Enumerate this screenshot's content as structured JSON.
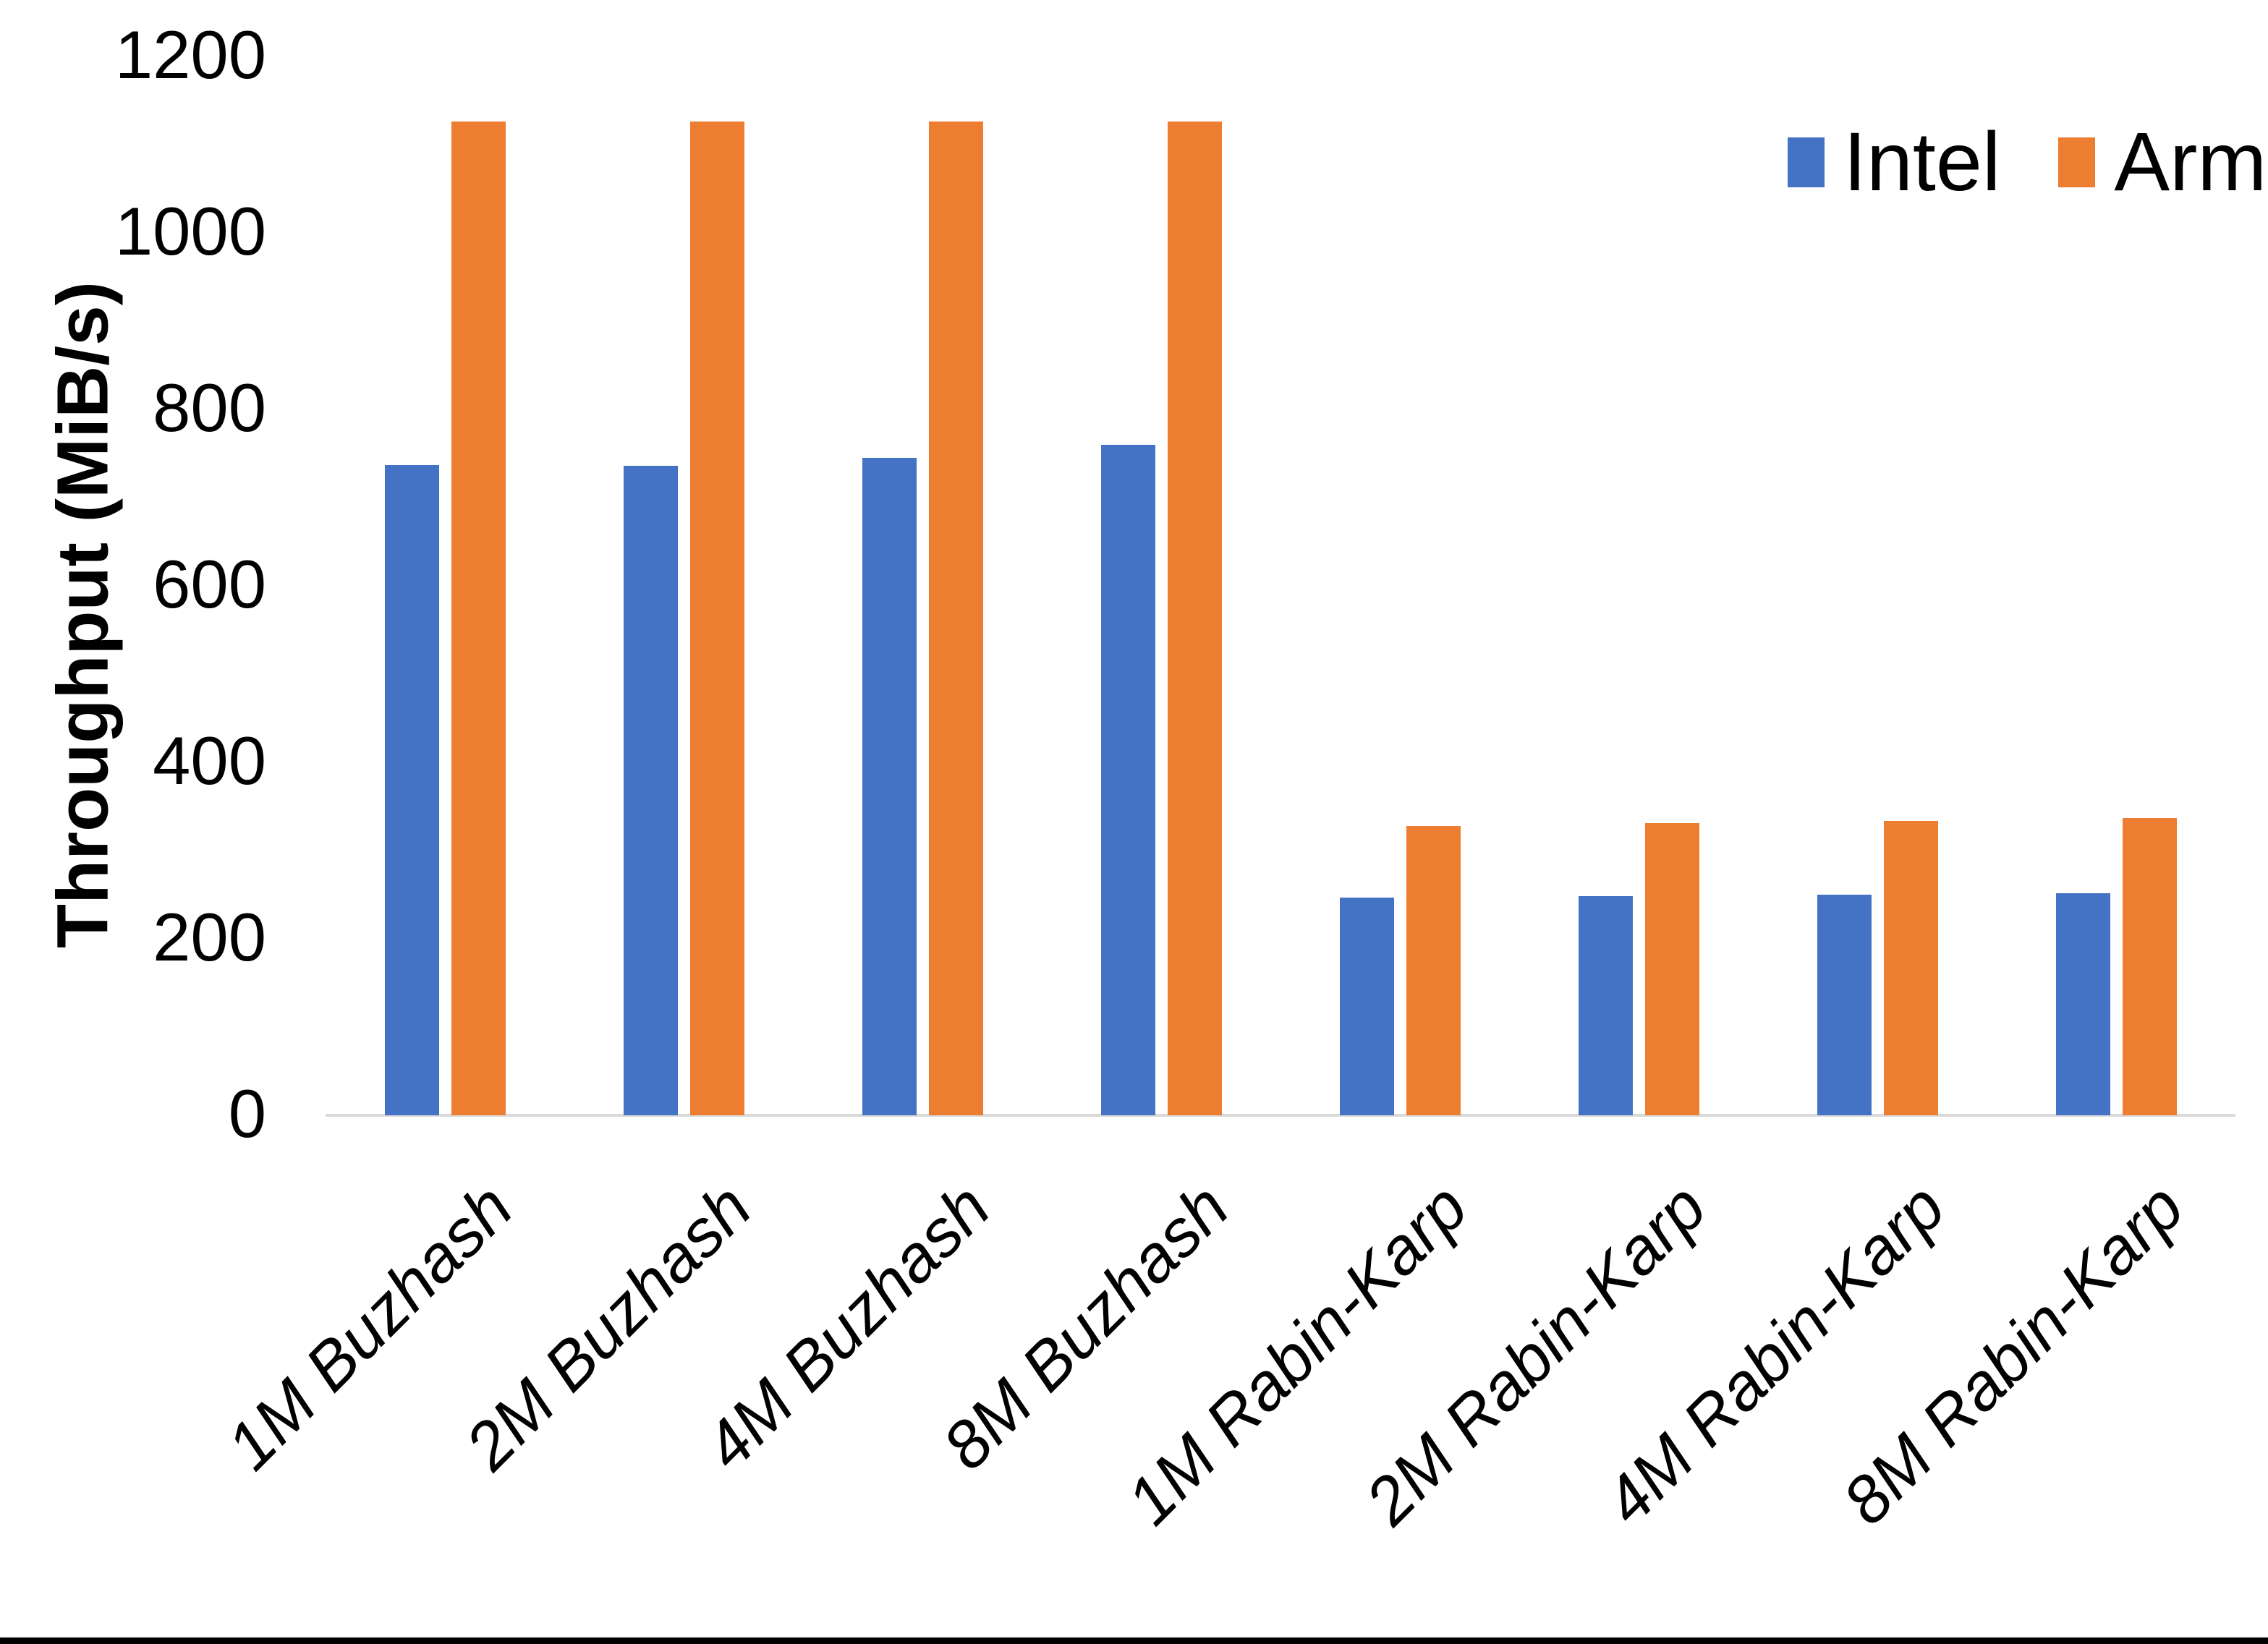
{
  "chart_data": {
    "type": "bar",
    "title": "",
    "ylabel": "Throughput (MiB/s)",
    "xlabel": "",
    "ylim": [
      0,
      1200
    ],
    "yticks": [
      0,
      200,
      400,
      600,
      800,
      1000,
      1200
    ],
    "grid": false,
    "legend_position": "top-right",
    "categories": [
      "1M Buzhash",
      "2M Buzhash",
      "4M Buzhash",
      "8M Buzhash",
      "1M Rabin-Karp",
      "2M Rabin-Karp",
      "4M Rabin-Karp",
      "8M Rabin-Karp"
    ],
    "series": [
      {
        "name": "Intel",
        "color": "#4472C4",
        "values": [
          737,
          736,
          745,
          760,
          247,
          248,
          250,
          252
        ]
      },
      {
        "name": "Arm",
        "color": "#ED7D31",
        "values": [
          1126,
          1126,
          1126,
          1126,
          328,
          331,
          334,
          337
        ]
      }
    ]
  },
  "colors": {
    "background": "#FFFFFF",
    "axis_line": "#D9D9D9",
    "text": "#000000",
    "bottom_border": "#000000"
  }
}
